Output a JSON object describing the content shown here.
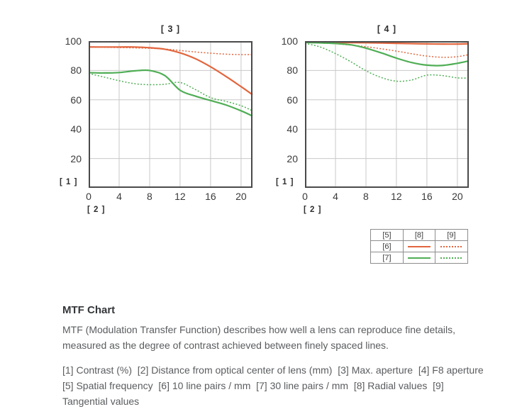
{
  "accent_colors": {
    "orange": "#e2663e",
    "green": "#4fae55",
    "grid": "#c9c9c9",
    "axis": "#4a4a4a"
  },
  "chart_data": [
    {
      "type": "line",
      "title": "[ 3 ]",
      "ylabel": "[ 1 ]",
      "xlabel": "[ 2 ]",
      "xlim": [
        0,
        21.5
      ],
      "ylim": [
        0,
        100
      ],
      "x_ticks": [
        0,
        4,
        8,
        12,
        16,
        20
      ],
      "y_ticks": [
        100,
        80,
        60,
        40,
        20
      ],
      "grid": true,
      "legend_position": "below-right",
      "x": [
        0,
        2,
        4,
        6,
        8,
        10,
        12,
        14,
        16,
        18,
        20,
        21.5
      ],
      "series": [
        {
          "name": "10 line pairs / mm - radial",
          "style": "solid",
          "color": "#e2663e",
          "values": [
            96,
            96,
            96,
            96,
            95.5,
            94.5,
            92,
            88,
            82.5,
            76,
            69,
            63.5
          ]
        },
        {
          "name": "10 line pairs / mm - tangential",
          "style": "dotted",
          "color": "#e2663e",
          "values": [
            96,
            95.8,
            95.6,
            95.4,
            95.1,
            94.6,
            93.6,
            92.6,
            91.8,
            91.1,
            90.8,
            90.8
          ]
        },
        {
          "name": "30 line pairs / mm - radial",
          "style": "solid",
          "color": "#4fae55",
          "values": [
            78.5,
            78.3,
            78.6,
            79.7,
            80,
            76.5,
            66.5,
            62.5,
            59.5,
            56.5,
            52.5,
            49
          ]
        },
        {
          "name": "30 line pairs / mm - tangential",
          "style": "dotted",
          "color": "#4fae55",
          "values": [
            78,
            75.5,
            73,
            71,
            70.3,
            70.6,
            71.8,
            67,
            61.5,
            59,
            56,
            52.5
          ]
        }
      ]
    },
    {
      "type": "line",
      "title": "[ 4 ]",
      "ylabel": "[ 1 ]",
      "xlabel": "[ 2 ]",
      "xlim": [
        0,
        21.5
      ],
      "ylim": [
        0,
        100
      ],
      "x_ticks": [
        0,
        4,
        8,
        12,
        16,
        20
      ],
      "y_ticks": [
        100,
        80,
        60,
        40,
        20
      ],
      "grid": true,
      "legend_position": "below-right",
      "x": [
        0,
        2,
        4,
        6,
        8,
        10,
        12,
        14,
        16,
        18,
        20,
        21.5
      ],
      "series": [
        {
          "name": "10 line pairs / mm - radial",
          "style": "solid",
          "color": "#e2663e",
          "values": [
            99.2,
            99.2,
            99.1,
            99,
            98.9,
            98.7,
            98.5,
            98.3,
            98.1,
            98,
            98,
            98.2
          ]
        },
        {
          "name": "10 line pairs / mm - tangential",
          "style": "dotted",
          "color": "#e2663e",
          "values": [
            99,
            98.7,
            98.2,
            97.3,
            96.2,
            94.8,
            93.2,
            91.4,
            89.8,
            89,
            89.4,
            90.8
          ]
        },
        {
          "name": "30 line pairs / mm - radial",
          "style": "solid",
          "color": "#4fae55",
          "values": [
            99,
            98.8,
            98.4,
            97.5,
            95.2,
            92,
            88.4,
            85.4,
            83.6,
            83.4,
            84.9,
            86.5
          ]
        },
        {
          "name": "30 line pairs / mm - tangential",
          "style": "dotted",
          "color": "#4fae55",
          "values": [
            98.5,
            96,
            91.5,
            86,
            79.8,
            75.2,
            72.7,
            73.5,
            76.8,
            76.5,
            75,
            74.8
          ]
        }
      ]
    }
  ],
  "legend": {
    "headers": [
      "[5]",
      "[8]",
      "[9]"
    ],
    "rows": [
      {
        "label": "[6]",
        "color": "#e2663e"
      },
      {
        "label": "[7]",
        "color": "#4fae55"
      }
    ]
  },
  "text": {
    "heading": "MTF Chart",
    "description": "MTF (Modulation Transfer Function) describes how well a lens can reproduce fine details, measured as the degree of contrast achieved between finely spaced lines.",
    "definitions": "[1] Contrast (%)  [2] Distance from optical center of lens (mm)  [3] Max. aperture  [4] F8 aperture  [5] Spatial frequency  [6] 10 line pairs / mm  [7] 30 line pairs / mm  [8] Radial values  [9] Tangential values"
  }
}
